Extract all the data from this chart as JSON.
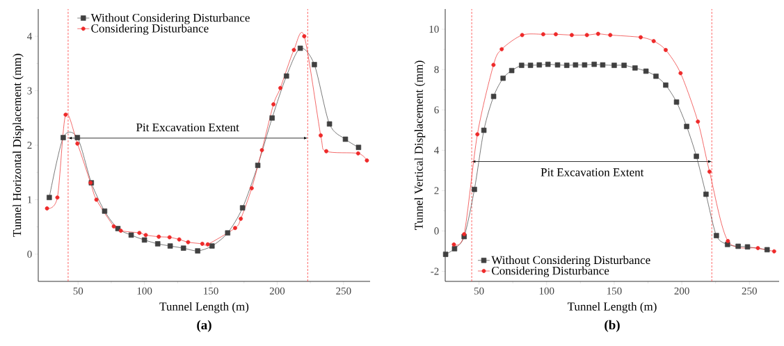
{
  "chart_data": [
    {
      "type": "line",
      "title": "(a)",
      "xlabel": "Tunnel Length (m)",
      "ylabel": "Tunnel Horizontal Displacement (mm)",
      "xlim": [
        20,
        270
      ],
      "xticks": [
        50,
        100,
        150,
        200,
        250
      ],
      "ylim": [
        -0.5,
        4.5
      ],
      "yticks": [
        0,
        1,
        2,
        3,
        4
      ],
      "legend": "top left",
      "ref_lines": [
        {
          "axis": "x",
          "value": 42.5,
          "color": "#ff4040",
          "line_style": "dashed"
        },
        {
          "axis": "x",
          "value": 223,
          "color": "#ff4040",
          "line_style": "dashed"
        }
      ],
      "annotations": [
        "Pit Excavation Extent"
      ],
      "series": [
        {
          "name": "Without Considering Disturbance",
          "color": "#404040",
          "marker": "square",
          "x": [
            28.3,
            38.8,
            49.5,
            60,
            70,
            80,
            90,
            100,
            110,
            119.4,
            129.4,
            140.1,
            150.9,
            162.7,
            173.9,
            185.4,
            196.2,
            207,
            217.4,
            228,
            239.4,
            251.4,
            261.3
          ],
          "values": [
            1.04,
            2.14,
            2.14,
            1.31,
            0.79,
            0.47,
            0.35,
            0.26,
            0.19,
            0.15,
            0.11,
            0.06,
            0.15,
            0.39,
            0.85,
            1.63,
            2.5,
            3.27,
            3.78,
            3.48,
            2.39,
            2.11,
            1.96
          ]
        },
        {
          "name": "Considering Disturbance",
          "color": "#ee2a2a",
          "marker": "circle",
          "x": [
            26.6,
            34.4,
            40.6,
            49.5,
            59.4,
            63.8,
            76.9,
            82.2,
            96.2,
            101,
            110.8,
            118.9,
            126.2,
            132.9,
            143.6,
            147.7,
            168.3,
            172.6,
            180.8,
            188.5,
            197.2,
            202.4,
            212.6,
            220.4,
            232.8,
            237,
            261,
            267.6
          ],
          "values": [
            0.84,
            1.04,
            2.56,
            2.03,
            1.31,
            1.0,
            0.51,
            0.43,
            0.39,
            0.35,
            0.32,
            0.31,
            0.27,
            0.22,
            0.19,
            0.18,
            0.48,
            0.65,
            1.21,
            1.91,
            2.75,
            3.05,
            3.75,
            4.0,
            2.18,
            1.89,
            1.85,
            1.72
          ]
        }
      ]
    },
    {
      "type": "line",
      "title": "(b)",
      "xlabel": "Tunnel Length (m)",
      "ylabel": "Tunnel Vertical Displacement (mm)",
      "xlim": [
        25,
        272
      ],
      "xticks": [
        50,
        100,
        150,
        200,
        250
      ],
      "ylim": [
        -2.5,
        11
      ],
      "yticks": [
        -2,
        0,
        2,
        4,
        6,
        8,
        10
      ],
      "legend": "bottom left",
      "ref_lines": [
        {
          "axis": "x",
          "value": 44.6,
          "color": "#ff4040",
          "line_style": "dashed"
        },
        {
          "axis": "x",
          "value": 222.2,
          "color": "#ff4040",
          "line_style": "dashed"
        }
      ],
      "annotations": [
        "Pit Excavation Extent"
      ],
      "series": [
        {
          "name": "Without Considering Disturbance",
          "color": "#404040",
          "marker": "square",
          "x": [
            25.3,
            31.9,
            39,
            46.6,
            53.6,
            60.8,
            67.8,
            74.2,
            81.5,
            88.1,
            94.6,
            101,
            108.1,
            114.9,
            121.4,
            128.1,
            135.2,
            141.5,
            150,
            157.3,
            165.4,
            173.5,
            180.9,
            188.1,
            196.1,
            203.6,
            210.8,
            217.9,
            225.6,
            233.8,
            241.7,
            248.6,
            263.1
          ],
          "values": [
            -1.16,
            -0.88,
            -0.28,
            2.06,
            4.99,
            6.67,
            7.57,
            7.95,
            8.21,
            8.21,
            8.23,
            8.26,
            8.23,
            8.21,
            8.23,
            8.23,
            8.26,
            8.23,
            8.21,
            8.21,
            8.08,
            7.92,
            7.67,
            7.23,
            6.39,
            5.18,
            3.7,
            1.82,
            -0.23,
            -0.67,
            -0.76,
            -0.79,
            -0.93
          ]
        },
        {
          "name": "Considering Disturbance",
          "color": "#ee2a2a",
          "marker": "circle",
          "x": [
            31.4,
            39,
            48.8,
            60.7,
            66.8,
            81.9,
            97.5,
            106.8,
            118.6,
            129.8,
            138.1,
            147.1,
            169.6,
            179.2,
            188.1,
            199.1,
            211.9,
            220.5,
            234.1,
            256.3,
            268.3
          ],
          "values": [
            -0.67,
            -0.16,
            4.79,
            8.23,
            9.01,
            9.71,
            9.75,
            9.75,
            9.71,
            9.71,
            9.77,
            9.71,
            9.6,
            9.41,
            8.97,
            7.82,
            5.42,
            2.94,
            -0.5,
            -0.85,
            -1.01
          ]
        }
      ]
    }
  ]
}
